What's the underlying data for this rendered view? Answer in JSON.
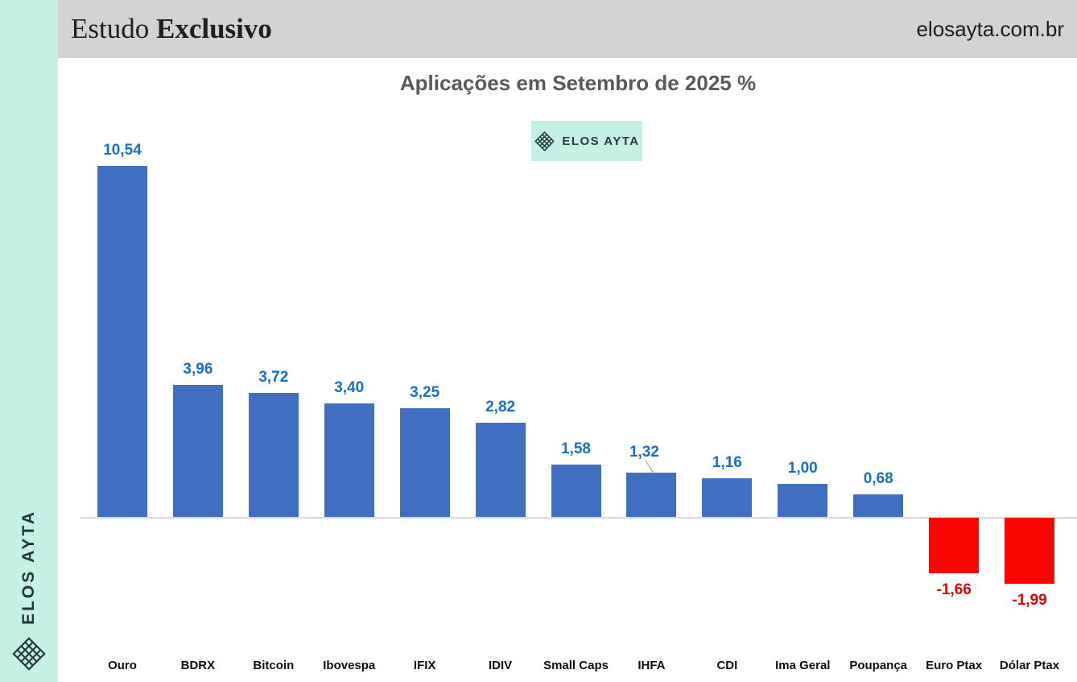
{
  "sidebar": {
    "brand": "ELOS AYTA"
  },
  "header": {
    "study_label_regular": "Estudo",
    "study_label_bold": "Exclusivo",
    "website": "elosayta.com.br"
  },
  "badge": {
    "label": "ELOS AYTA"
  },
  "chart_data": {
    "type": "bar",
    "title": "Aplicações em Setembro de 2025 %",
    "categories": [
      "Ouro",
      "BDRX",
      "Bitcoin",
      "Ibovespa",
      "IFIX",
      "IDIV",
      "Small Caps",
      "IHFA",
      "CDI",
      "Ima Geral",
      "Poupança",
      "Euro Ptax",
      "Dólar Ptax"
    ],
    "values": [
      10.54,
      3.96,
      3.72,
      3.4,
      3.25,
      2.82,
      1.58,
      1.32,
      1.16,
      1.0,
      0.68,
      -1.66,
      -1.99
    ],
    "value_labels": [
      "10,54",
      "3,96",
      "3,72",
      "3,40",
      "3,25",
      "2,82",
      "1,58",
      "1,32",
      "1,16",
      "1,00",
      "0,68",
      "-1,66",
      "-1,99"
    ],
    "unit": "%",
    "ylim": [
      -2.5,
      11.5
    ],
    "grid": false,
    "legend": "none",
    "positive_bar_color": "#3f6fc1",
    "negative_bar_color": "#fb0500",
    "positive_label_color": "#1b6fc0",
    "negative_label_color": "#e00400",
    "axis_line_color": "#d9d9d9",
    "category_label_color": "#0d0d0d",
    "leader_line_category": "IHFA",
    "leader_line_color": "#a6a6a6"
  },
  "colors": {
    "sidebar_bg": "#c3f2e5",
    "header_bg": "#d3d3d3",
    "badge_bg": "#c3f2e5",
    "title_color": "#595959",
    "brand_dark": "#22363b"
  }
}
